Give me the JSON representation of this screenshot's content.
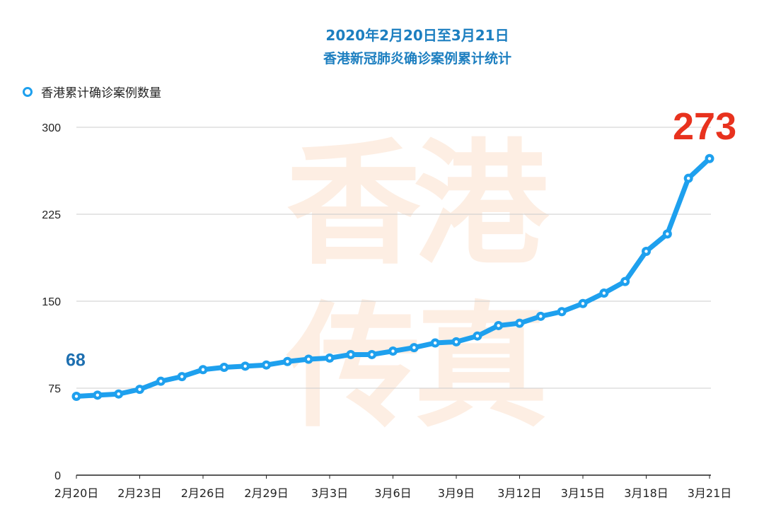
{
  "title_line1": "2020年2月20日至3月21日",
  "title_line2": "香港新冠肺炎确诊案例累计统计",
  "watermark": "香港传真",
  "colors": {
    "line": "#1ea0ee",
    "title": "#1d7fc0",
    "start_label": "#1d6fb0",
    "end_label": "#e8321e",
    "grid": "#cccccc",
    "watermark": "#fdeee3"
  },
  "chart_data": {
    "type": "line",
    "title": "2020年2月20日至3月21日 香港新冠肺炎确诊案例累计统计",
    "legend_position": "top-left",
    "grid": true,
    "ylim": [
      0,
      300
    ],
    "yticks": [
      0,
      75,
      150,
      225,
      300
    ],
    "xtick_labels": [
      "2月20日",
      "2月23日",
      "2月26日",
      "2月29日",
      "3月3日",
      "3月6日",
      "3月9日",
      "3月12日",
      "3月15日",
      "3月18日",
      "3月21日"
    ],
    "x": [
      "2月20日",
      "2月21日",
      "2月22日",
      "2月23日",
      "2月24日",
      "2月25日",
      "2月26日",
      "2月27日",
      "2月28日",
      "2月29日",
      "3月1日",
      "3月2日",
      "3月3日",
      "3月4日",
      "3月5日",
      "3月6日",
      "3月7日",
      "3月8日",
      "3月9日",
      "3月10日",
      "3月11日",
      "3月12日",
      "3月13日",
      "3月14日",
      "3月15日",
      "3月16日",
      "3月17日",
      "3月18日",
      "3月19日",
      "3月20日",
      "3月21日"
    ],
    "series": [
      {
        "name": "香港累计确诊案例数量",
        "values": [
          68,
          69,
          70,
          74,
          81,
          85,
          91,
          93,
          94,
          95,
          98,
          100,
          101,
          104,
          104,
          107,
          110,
          114,
          115,
          120,
          129,
          131,
          137,
          141,
          148,
          157,
          167,
          193,
          208,
          256,
          273
        ]
      }
    ],
    "annotations": [
      {
        "x": "2月20日",
        "text": "68"
      },
      {
        "x": "3月21日",
        "text": "273"
      }
    ]
  }
}
